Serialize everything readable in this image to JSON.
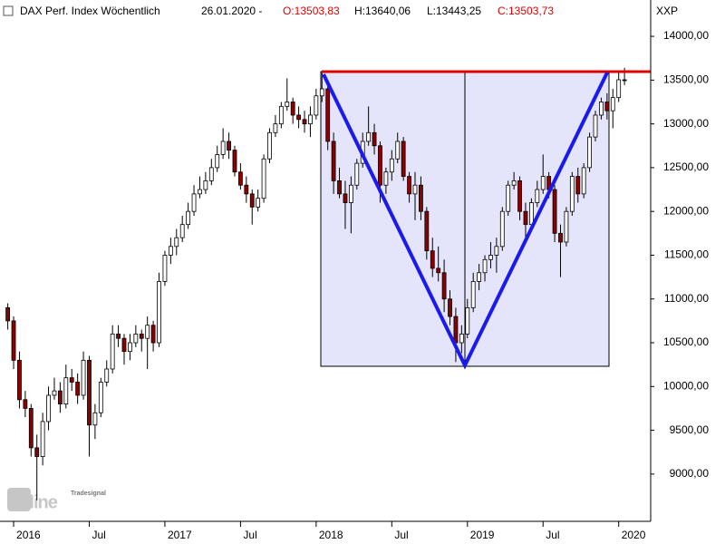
{
  "chart_data": {
    "type": "candlestick",
    "title": "DAX Perf. Index Wöchentlich",
    "date": "26.01.2020 -",
    "last_open": "O:13503,83",
    "last_high": "H:13640,06",
    "last_low": "L:13443,25",
    "last_close": "C:13503,73",
    "symbol": "XXP",
    "watermark": [
      "Tradesignal",
      "online"
    ],
    "up_color": "#ffffff",
    "down_color": "#8b0000",
    "ylim": [
      8460,
      14415
    ],
    "yticks": [
      {
        "value": 9000,
        "label": "9000,00"
      },
      {
        "value": 9500,
        "label": "9500,00"
      },
      {
        "value": 10000,
        "label": "10000,00"
      },
      {
        "value": 10500,
        "label": "10500,00"
      },
      {
        "value": 11000,
        "label": "11000,00"
      },
      {
        "value": 11500,
        "label": "11500,00"
      },
      {
        "value": 12000,
        "label": "12000,00"
      },
      {
        "value": 12500,
        "label": "12500,00"
      },
      {
        "value": 13000,
        "label": "13000,00"
      },
      {
        "value": 13500,
        "label": "13500,00"
      },
      {
        "value": 14000,
        "label": "14000,00"
      }
    ],
    "xlim": [
      -1.34,
      110.5
    ],
    "xticks": [
      {
        "value": 1,
        "label": "2016"
      },
      {
        "value": 14,
        "label": "Jul"
      },
      {
        "value": 27,
        "label": "2017"
      },
      {
        "value": 40,
        "label": "Jul"
      },
      {
        "value": 53,
        "label": "2018"
      },
      {
        "value": 66,
        "label": "Jul"
      },
      {
        "value": 79,
        "label": "2019"
      },
      {
        "value": 92,
        "label": "Jul"
      },
      {
        "value": 105,
        "label": "2020"
      }
    ],
    "ohlc": [
      [
        10900,
        10950,
        10650,
        10750
      ],
      [
        10750,
        10800,
        10200,
        10300
      ],
      [
        10300,
        10400,
        9750,
        9850
      ],
      [
        9850,
        9950,
        9650,
        9750
      ],
      [
        9750,
        9800,
        9200,
        9300
      ],
      [
        9300,
        9450,
        8700,
        9200
      ],
      [
        9200,
        9700,
        9100,
        9600
      ],
      [
        9600,
        10000,
        9500,
        9900
      ],
      [
        9900,
        10100,
        9850,
        9950
      ],
      [
        9950,
        10050,
        9700,
        9800
      ],
      [
        9800,
        10250,
        9750,
        10100
      ],
      [
        10100,
        10200,
        9950,
        10050
      ],
      [
        10050,
        10150,
        9800,
        9900
      ],
      [
        9900,
        10400,
        9850,
        10300
      ],
      [
        10300,
        10350,
        9200,
        9560
      ],
      [
        9560,
        9800,
        9400,
        9700
      ],
      [
        9700,
        10100,
        9650,
        10050
      ],
      [
        10050,
        10300,
        10000,
        10200
      ],
      [
        10200,
        10700,
        10150,
        10600
      ],
      [
        10600,
        10700,
        10450,
        10550
      ],
      [
        10550,
        10600,
        10250,
        10400
      ],
      [
        10400,
        10600,
        10300,
        10500
      ],
      [
        10500,
        10700,
        10450,
        10600
      ],
      [
        10600,
        10650,
        10400,
        10550
      ],
      [
        10550,
        10800,
        10200,
        10700
      ],
      [
        10700,
        10750,
        10400,
        10500
      ],
      [
        10500,
        11300,
        10450,
        11200
      ],
      [
        11200,
        11550,
        11150,
        11500
      ],
      [
        11500,
        11700,
        11400,
        11600
      ],
      [
        11600,
        11800,
        11500,
        11700
      ],
      [
        11700,
        11950,
        11650,
        11850
      ],
      [
        11850,
        12100,
        11800,
        12000
      ],
      [
        12000,
        12300,
        11950,
        12200
      ],
      [
        12200,
        12400,
        12150,
        12250
      ],
      [
        12250,
        12450,
        12200,
        12350
      ],
      [
        12350,
        12600,
        12300,
        12500
      ],
      [
        12500,
        12750,
        12450,
        12650
      ],
      [
        12650,
        12950,
        12600,
        12800
      ],
      [
        12800,
        12900,
        12600,
        12700
      ],
      [
        12700,
        12750,
        12400,
        12450
      ],
      [
        12450,
        12550,
        12250,
        12300
      ],
      [
        12300,
        12400,
        12100,
        12200
      ],
      [
        12200,
        12250,
        11850,
        12050
      ],
      [
        12050,
        12250,
        12000,
        12150
      ],
      [
        12150,
        12650,
        12100,
        12600
      ],
      [
        12600,
        12950,
        12550,
        12900
      ],
      [
        12900,
        13100,
        12850,
        13000
      ],
      [
        13000,
        13250,
        12950,
        13200
      ],
      [
        13200,
        13520,
        13150,
        13250
      ],
      [
        13250,
        13300,
        13000,
        13100
      ],
      [
        13100,
        13200,
        12950,
        13050
      ],
      [
        13050,
        13150,
        12900,
        13000
      ],
      [
        13000,
        13200,
        12850,
        13100
      ],
      [
        13100,
        13400,
        13050,
        13320
      ],
      [
        13320,
        13600,
        13250,
        13400
      ],
      [
        13400,
        13450,
        12700,
        12800
      ],
      [
        12800,
        12900,
        12200,
        12350
      ],
      [
        12350,
        12500,
        12150,
        12200
      ],
      [
        12200,
        12350,
        11800,
        12100
      ],
      [
        12100,
        12400,
        11750,
        12300
      ],
      [
        12300,
        12600,
        12250,
        12550
      ],
      [
        12550,
        12900,
        12500,
        12800
      ],
      [
        12800,
        13200,
        12750,
        12900
      ],
      [
        12900,
        13000,
        12650,
        12750
      ],
      [
        12750,
        12800,
        12100,
        12300
      ],
      [
        12300,
        12500,
        12200,
        12450
      ],
      [
        12450,
        12700,
        12350,
        12600
      ],
      [
        12600,
        12900,
        12550,
        12800
      ],
      [
        12800,
        12850,
        12350,
        12400
      ],
      [
        12400,
        12450,
        12100,
        12200
      ],
      [
        12200,
        12450,
        11900,
        12300
      ],
      [
        12300,
        12400,
        11900,
        12000
      ],
      [
        12000,
        12050,
        11450,
        11550
      ],
      [
        11550,
        11700,
        11250,
        11350
      ],
      [
        11350,
        11600,
        11200,
        11300
      ],
      [
        11300,
        11450,
        10850,
        11000
      ],
      [
        11000,
        11100,
        10700,
        10800
      ],
      [
        10800,
        10900,
        10280,
        10500
      ],
      [
        10500,
        10700,
        10380,
        10600
      ],
      [
        10600,
        11000,
        10550,
        10900
      ],
      [
        10900,
        11300,
        10850,
        11200
      ],
      [
        11200,
        11400,
        11100,
        11300
      ],
      [
        11300,
        11500,
        11200,
        11450
      ],
      [
        11450,
        11650,
        11350,
        11500
      ],
      [
        11500,
        11700,
        11300,
        11600
      ],
      [
        11600,
        12050,
        11550,
        12000
      ],
      [
        12000,
        12350,
        11950,
        12300
      ],
      [
        12300,
        12450,
        12250,
        12350
      ],
      [
        12350,
        12400,
        11900,
        12000
      ],
      [
        12000,
        12100,
        11700,
        11850
      ],
      [
        11850,
        12150,
        11800,
        12100
      ],
      [
        12100,
        12350,
        12050,
        12250
      ],
      [
        12250,
        12650,
        12200,
        12400
      ],
      [
        12400,
        12450,
        12150,
        12250
      ],
      [
        12250,
        12300,
        11650,
        11750
      ],
      [
        11750,
        11850,
        11250,
        11650
      ],
      [
        11650,
        12050,
        11600,
        12000
      ],
      [
        12000,
        12450,
        11950,
        12400
      ],
      [
        12400,
        12500,
        12100,
        12200
      ],
      [
        12200,
        12550,
        12150,
        12500
      ],
      [
        12500,
        12900,
        12450,
        12850
      ],
      [
        12850,
        13150,
        12800,
        13100
      ],
      [
        13100,
        13300,
        13050,
        13250
      ],
      [
        13250,
        13350,
        13050,
        13150
      ],
      [
        13150,
        13400,
        12950,
        13300
      ],
      [
        13300,
        13600,
        13250,
        13503.83
      ],
      [
        13503.83,
        13640.06,
        13443.25,
        13503.73
      ]
    ]
  }
}
